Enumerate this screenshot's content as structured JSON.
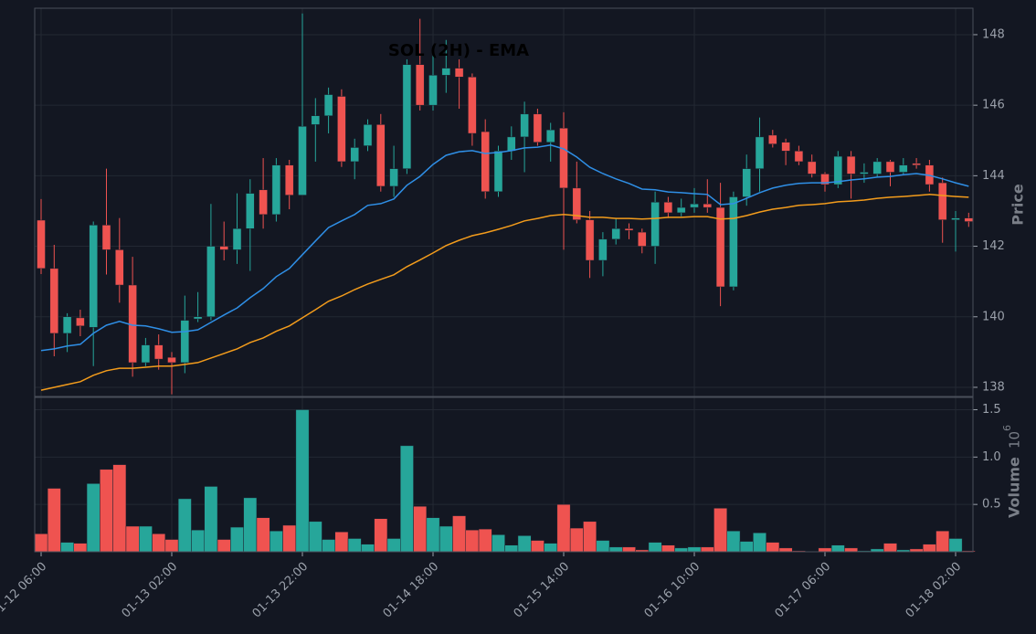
{
  "chart_data": {
    "type": "candlestick",
    "title": "SOL (2H) - EMA",
    "ylabel": "Price",
    "volume_label": "Volume",
    "volume_multiplier": {
      "base": "10",
      "exponent": "6"
    },
    "categories": [
      "01-12 06:00",
      null,
      null,
      null,
      null,
      null,
      null,
      null,
      null,
      null,
      "01-13 02:00",
      null,
      null,
      null,
      null,
      null,
      null,
      null,
      null,
      null,
      "01-13 22:00",
      null,
      null,
      null,
      null,
      null,
      null,
      null,
      null,
      null,
      "01-14 18:00",
      null,
      null,
      null,
      null,
      null,
      null,
      null,
      null,
      null,
      "01-15 14:00",
      null,
      null,
      null,
      null,
      null,
      null,
      null,
      null,
      null,
      "01-16 10:00",
      null,
      null,
      null,
      null,
      null,
      null,
      null,
      null,
      null,
      "01-17 06:00",
      null,
      null,
      null,
      null,
      null,
      null,
      null,
      null,
      null,
      "01-18 02:00",
      null
    ],
    "open": [
      142.74,
      141.37,
      139.53,
      139.97,
      139.7,
      142.6,
      141.9,
      140.9,
      138.7,
      139.2,
      138.85,
      138.7,
      139.94,
      140.0,
      142.0,
      141.9,
      142.5,
      143.6,
      142.9,
      144.3,
      143.45,
      145.45,
      145.7,
      146.25,
      144.4,
      144.85,
      145.45,
      143.7,
      144.2,
      147.15,
      146.0,
      146.85,
      147.05,
      146.8,
      145.25,
      143.55,
      144.7,
      145.1,
      145.75,
      144.95,
      145.35,
      143.65,
      142.75,
      141.6,
      142.2,
      142.5,
      142.4,
      142.0,
      143.25,
      142.95,
      143.1,
      143.2,
      143.1,
      140.85,
      143.4,
      144.2,
      145.15,
      144.95,
      144.7,
      144.4,
      144.05,
      143.75,
      144.55,
      144.05,
      144.05,
      144.4,
      144.1,
      144.35,
      144.3,
      143.8,
      142.75,
      142.8
    ],
    "high": [
      143.34,
      142.04,
      140.1,
      140.2,
      142.7,
      144.2,
      142.8,
      141.7,
      139.4,
      139.5,
      139.0,
      140.6,
      140.7,
      143.2,
      142.7,
      143.5,
      143.9,
      144.5,
      144.5,
      144.45,
      148.6,
      146.2,
      146.5,
      146.45,
      145.05,
      145.6,
      145.75,
      144.85,
      147.3,
      148.45,
      147.4,
      147.85,
      147.3,
      146.9,
      145.6,
      144.85,
      145.4,
      146.1,
      145.9,
      145.5,
      145.8,
      144.4,
      143.0,
      142.4,
      142.8,
      142.65,
      142.5,
      143.55,
      143.4,
      143.35,
      143.65,
      143.9,
      143.8,
      143.55,
      144.6,
      145.65,
      145.3,
      145.05,
      144.85,
      144.6,
      144.1,
      144.7,
      144.7,
      144.35,
      144.5,
      144.45,
      144.5,
      144.5,
      144.45,
      143.95,
      143.0,
      142.95
    ],
    "low": [
      141.21,
      138.88,
      139.0,
      139.45,
      138.6,
      141.2,
      140.4,
      138.3,
      138.6,
      138.5,
      137.8,
      138.4,
      139.85,
      139.9,
      141.6,
      141.5,
      141.3,
      142.5,
      142.7,
      143.05,
      143.45,
      144.4,
      145.2,
      144.25,
      143.9,
      144.7,
      143.55,
      143.4,
      144.05,
      145.85,
      145.85,
      146.35,
      145.9,
      144.85,
      143.35,
      143.4,
      144.45,
      144.1,
      144.85,
      144.4,
      141.9,
      142.65,
      141.1,
      141.15,
      142.05,
      142.2,
      141.8,
      141.5,
      142.8,
      142.85,
      142.95,
      142.95,
      140.3,
      140.75,
      143.15,
      143.55,
      144.8,
      144.3,
      144.3,
      143.95,
      143.55,
      143.65,
      143.35,
      143.8,
      143.95,
      143.7,
      144.05,
      144.2,
      143.55,
      142.1,
      141.85,
      142.55
    ],
    "close": [
      141.37,
      139.53,
      140.0,
      139.74,
      142.6,
      141.9,
      140.9,
      138.7,
      139.2,
      138.8,
      138.7,
      139.9,
      140.0,
      142.0,
      141.9,
      142.5,
      143.5,
      142.9,
      144.3,
      143.45,
      145.4,
      145.7,
      146.3,
      144.4,
      144.8,
      145.45,
      143.7,
      144.2,
      147.15,
      146.0,
      146.85,
      147.05,
      146.8,
      145.2,
      143.55,
      144.7,
      145.1,
      145.75,
      144.95,
      145.3,
      143.65,
      142.75,
      141.6,
      142.2,
      142.5,
      142.45,
      142.0,
      143.25,
      142.95,
      143.1,
      143.2,
      143.1,
      140.85,
      143.4,
      144.2,
      145.1,
      144.9,
      144.7,
      144.4,
      144.05,
      143.75,
      144.55,
      144.05,
      144.1,
      144.4,
      144.1,
      144.3,
      144.3,
      143.75,
      142.75,
      142.8,
      142.7
    ],
    "volume": [
      0.19,
      0.67,
      0.1,
      0.09,
      0.72,
      0.87,
      0.92,
      0.27,
      0.27,
      0.19,
      0.13,
      0.56,
      0.23,
      0.69,
      0.13,
      0.26,
      0.57,
      0.36,
      0.22,
      0.28,
      1.5,
      0.32,
      0.13,
      0.21,
      0.14,
      0.08,
      0.35,
      0.14,
      1.12,
      0.48,
      0.36,
      0.27,
      0.38,
      0.23,
      0.24,
      0.18,
      0.07,
      0.17,
      0.12,
      0.09,
      0.5,
      0.25,
      0.32,
      0.12,
      0.05,
      0.05,
      0.02,
      0.1,
      0.07,
      0.04,
      0.05,
      0.05,
      0.46,
      0.22,
      0.11,
      0.2,
      0.1,
      0.04,
      0.01,
      0.0,
      0.04,
      0.07,
      0.04,
      0.01,
      0.03,
      0.09,
      0.02,
      0.03,
      0.08,
      0.22,
      0.14,
      0.01
    ],
    "up_color": "#26a69a",
    "down_color": "#ef5350",
    "series": [
      {
        "color": "#2f8fe6",
        "values": [
          139.04,
          139.09,
          139.17,
          139.22,
          139.53,
          139.76,
          139.87,
          139.76,
          139.74,
          139.66,
          139.56,
          139.58,
          139.63,
          139.84,
          140.05,
          140.25,
          140.54,
          140.8,
          141.14,
          141.37,
          141.76,
          142.15,
          142.53,
          142.72,
          142.9,
          143.16,
          143.21,
          143.34,
          143.73,
          143.98,
          144.32,
          144.58,
          144.68,
          144.71,
          144.63,
          144.66,
          144.71,
          144.79,
          144.81,
          144.87,
          144.76,
          144.53,
          144.24,
          144.06,
          143.91,
          143.78,
          143.62,
          143.6,
          143.54,
          143.52,
          143.49,
          143.47,
          143.18,
          143.21,
          143.36,
          143.52,
          143.65,
          143.73,
          143.78,
          143.8,
          143.8,
          143.83,
          143.88,
          143.91,
          143.96,
          143.98,
          144.03,
          144.06,
          144.01,
          143.91,
          143.8,
          143.7
        ]
      },
      {
        "color": "#f39c1c",
        "values": [
          137.92,
          138.0,
          138.08,
          138.16,
          138.34,
          138.47,
          138.54,
          138.54,
          138.57,
          138.6,
          138.6,
          138.65,
          138.7,
          138.83,
          138.96,
          139.09,
          139.27,
          139.4,
          139.59,
          139.74,
          139.97,
          140.2,
          140.44,
          140.59,
          140.77,
          140.93,
          141.06,
          141.19,
          141.42,
          141.61,
          141.81,
          142.02,
          142.17,
          142.3,
          142.38,
          142.48,
          142.59,
          142.72,
          142.79,
          142.87,
          142.9,
          142.87,
          142.82,
          142.82,
          142.79,
          142.79,
          142.77,
          142.79,
          142.82,
          142.82,
          142.84,
          142.84,
          142.77,
          142.79,
          142.87,
          142.97,
          143.05,
          143.1,
          143.16,
          143.18,
          143.21,
          143.26,
          143.28,
          143.31,
          143.36,
          143.39,
          143.41,
          143.44,
          143.47,
          143.44,
          143.41,
          143.39
        ]
      }
    ],
    "ylim": [
      137.74,
      148.75
    ],
    "yticks": [
      138,
      140,
      142,
      144,
      146,
      148
    ],
    "volume_ylim": [
      0,
      1.63
    ],
    "volume_yticks": [
      0.5,
      {
        "value": 1,
        "label": "1.0"
      },
      1.5
    ],
    "grid": true
  }
}
